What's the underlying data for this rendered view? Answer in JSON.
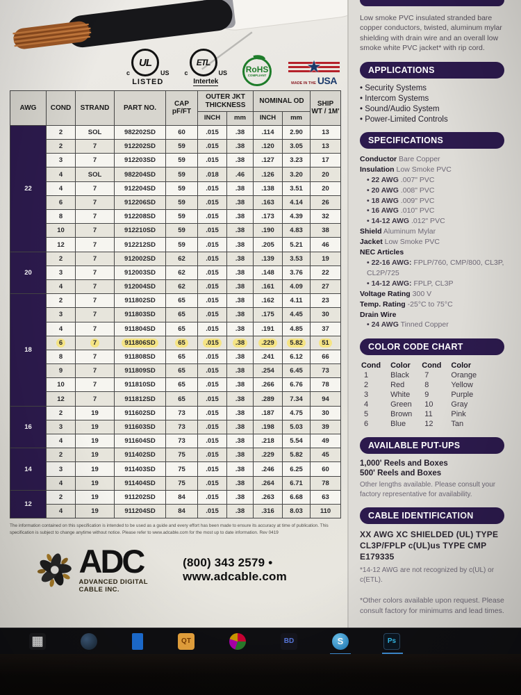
{
  "colors": {
    "purple": "#2c1a4d",
    "highlight": "#f5e484",
    "rohs_green": "#1e7c2a",
    "usa_red": "#b5212a",
    "usa_navy": "#1b3a6b",
    "gold": "#a77b28"
  },
  "badges": {
    "ul": {
      "prefix": "c",
      "text": "UL",
      "suffix": "US",
      "label": "LISTED"
    },
    "etl": {
      "prefix": "c",
      "text": "ETL",
      "suffix": "US",
      "label": "Intertek"
    },
    "rohs": {
      "text": "RoHS",
      "sub": "COMPLIANT"
    },
    "usa": {
      "pre": "MADE IN THE",
      "text": "USA",
      "star": "★"
    }
  },
  "table": {
    "col_headers": {
      "awg": "AWG",
      "cond": "COND",
      "strand": "STRAND",
      "part_no": "PART NO.",
      "cap": "CAP pF/FT",
      "outer_jkt": "OUTER JKT THICKNESS",
      "nominal_od": "NOMINAL OD",
      "ship_wt": "SHIP WT / 1M'",
      "inch": "INCH",
      "mm": "mm"
    },
    "highlight_part_no": "911806SD",
    "groups": [
      {
        "awg": "22",
        "rows": [
          [
            "2",
            "SOL",
            "982202SD",
            "60",
            ".015",
            ".38",
            ".114",
            "2.90",
            "13"
          ],
          [
            "2",
            "7",
            "912202SD",
            "59",
            ".015",
            ".38",
            ".120",
            "3.05",
            "13"
          ],
          [
            "3",
            "7",
            "912203SD",
            "59",
            ".015",
            ".38",
            ".127",
            "3.23",
            "17"
          ],
          [
            "4",
            "SOL",
            "982204SD",
            "59",
            ".018",
            ".46",
            ".126",
            "3.20",
            "20"
          ],
          [
            "4",
            "7",
            "912204SD",
            "59",
            ".015",
            ".38",
            ".138",
            "3.51",
            "20"
          ],
          [
            "6",
            "7",
            "912206SD",
            "59",
            ".015",
            ".38",
            ".163",
            "4.14",
            "26"
          ],
          [
            "8",
            "7",
            "912208SD",
            "59",
            ".015",
            ".38",
            ".173",
            "4.39",
            "32"
          ],
          [
            "10",
            "7",
            "912210SD",
            "59",
            ".015",
            ".38",
            ".190",
            "4.83",
            "38"
          ],
          [
            "12",
            "7",
            "912212SD",
            "59",
            ".015",
            ".38",
            ".205",
            "5.21",
            "46"
          ]
        ]
      },
      {
        "awg": "20",
        "rows": [
          [
            "2",
            "7",
            "912002SD",
            "62",
            ".015",
            ".38",
            ".139",
            "3.53",
            "19"
          ],
          [
            "3",
            "7",
            "912003SD",
            "62",
            ".015",
            ".38",
            ".148",
            "3.76",
            "22"
          ],
          [
            "4",
            "7",
            "912004SD",
            "62",
            ".015",
            ".38",
            ".161",
            "4.09",
            "27"
          ]
        ]
      },
      {
        "awg": "18",
        "rows": [
          [
            "2",
            "7",
            "911802SD",
            "65",
            ".015",
            ".38",
            ".162",
            "4.11",
            "23"
          ],
          [
            "3",
            "7",
            "911803SD",
            "65",
            ".015",
            ".38",
            ".175",
            "4.45",
            "30"
          ],
          [
            "4",
            "7",
            "911804SD",
            "65",
            ".015",
            ".38",
            ".191",
            "4.85",
            "37"
          ],
          [
            "6",
            "7",
            "911806SD",
            "65",
            ".015",
            ".38",
            ".229",
            "5.82",
            "51"
          ],
          [
            "8",
            "7",
            "911808SD",
            "65",
            ".015",
            ".38",
            ".241",
            "6.12",
            "66"
          ],
          [
            "9",
            "7",
            "911809SD",
            "65",
            ".015",
            ".38",
            ".254",
            "6.45",
            "73"
          ],
          [
            "10",
            "7",
            "911810SD",
            "65",
            ".015",
            ".38",
            ".266",
            "6.76",
            "78"
          ],
          [
            "12",
            "7",
            "911812SD",
            "65",
            ".015",
            ".38",
            ".289",
            "7.34",
            "94"
          ]
        ]
      },
      {
        "awg": "16",
        "rows": [
          [
            "2",
            "19",
            "911602SD",
            "73",
            ".015",
            ".38",
            ".187",
            "4.75",
            "30"
          ],
          [
            "3",
            "19",
            "911603SD",
            "73",
            ".015",
            ".38",
            ".198",
            "5.03",
            "39"
          ],
          [
            "4",
            "19",
            "911604SD",
            "73",
            ".015",
            ".38",
            ".218",
            "5.54",
            "49"
          ]
        ]
      },
      {
        "awg": "14",
        "rows": [
          [
            "2",
            "19",
            "911402SD",
            "75",
            ".015",
            ".38",
            ".229",
            "5.82",
            "45"
          ],
          [
            "3",
            "19",
            "911403SD",
            "75",
            ".015",
            ".38",
            ".246",
            "6.25",
            "60"
          ],
          [
            "4",
            "19",
            "911404SD",
            "75",
            ".015",
            ".38",
            ".264",
            "6.71",
            "78"
          ]
        ]
      },
      {
        "awg": "12",
        "rows": [
          [
            "2",
            "19",
            "911202SD",
            "84",
            ".015",
            ".38",
            ".263",
            "6.68",
            "63"
          ],
          [
            "4",
            "19",
            "911204SD",
            "84",
            ".015",
            ".38",
            ".316",
            "8.03",
            "110"
          ]
        ]
      }
    ]
  },
  "panel": {
    "description": "Low smoke PVC insulated stranded bare copper conductors, twisted, aluminum mylar shielding with drain wire and an overall low smoke white PVC jacket* with rip cord.",
    "applications": {
      "title": "APPLICATIONS",
      "items": [
        "Security Systems",
        "Intercom Systems",
        "Sound/Audio System",
        "Power-Limited Controls"
      ]
    },
    "specifications": {
      "title": "SPECIFICATIONS",
      "lines": [
        {
          "label": "Conductor",
          "value": "Bare Copper"
        },
        {
          "label": "Insulation",
          "value": "Low Smoke PVC"
        },
        {
          "b": "22 AWG",
          "v": ".007\" PVC"
        },
        {
          "b": "20 AWG",
          "v": ".008\" PVC"
        },
        {
          "b": "18 AWG",
          "v": ".009\" PVC"
        },
        {
          "b": "16 AWG",
          "v": ".010\" PVC"
        },
        {
          "b": "14-12 AWG",
          "v": ".012\" PVC"
        },
        {
          "label": "Shield",
          "value": "Aluminum Mylar"
        },
        {
          "label": "Jacket",
          "value": "Low Smoke PVC"
        },
        {
          "label": "NEC Articles",
          "value": ""
        },
        {
          "b": "22-16 AWG:",
          "v": "FPLP/760, CMP/800, CL3P, CL2P/725"
        },
        {
          "b": "14-12 AWG:",
          "v": "FPLP, CL3P"
        },
        {
          "label": "Voltage Rating",
          "value": "300 V"
        },
        {
          "label": "Temp. Rating",
          "value": "-25°C to 75°C"
        },
        {
          "label": "Drain Wire",
          "value": ""
        },
        {
          "b": "24 AWG",
          "v": "Tinned Copper"
        }
      ]
    },
    "color_code": {
      "title": "COLOR CODE CHART",
      "headers": [
        "Cond",
        "Color",
        "Cond",
        "Color"
      ],
      "rows": [
        [
          "1",
          "Black",
          "7",
          "Orange"
        ],
        [
          "2",
          "Red",
          "8",
          "Yellow"
        ],
        [
          "3",
          "White",
          "9",
          "Purple"
        ],
        [
          "4",
          "Green",
          "10",
          "Gray"
        ],
        [
          "5",
          "Brown",
          "11",
          "Pink"
        ],
        [
          "6",
          "Blue",
          "12",
          "Tan"
        ]
      ]
    },
    "put_ups": {
      "title": "AVAILABLE PUT-UPS",
      "lines": [
        "1,000' Reels and Boxes",
        "500' Reels and Boxes"
      ],
      "note": "Other lengths available. Please consult your factory representative for availability."
    },
    "cable_id": {
      "title": "CABLE IDENTIFICATION",
      "text": "XX AWG XC SHIELDED (UL) TYPE CL3P/FPLP c(UL)us TYPE CMP E179335",
      "footnote": "*14-12 AWG are not recognized by c(UL) or c(ETL)."
    },
    "other_note": "*Other colors available upon request. Please consult factory for minimums and lead times."
  },
  "footer": {
    "fine_print": "The information contained on this specification is intended to be used as a guide and every effort has been made to ensure its accuracy at time of publication. This specification is subject to change anytime without notice. Please refer to www.adcable.com for the most up to date information.  Rev 0419",
    "logo": {
      "name": "ADC",
      "subtitle": "ADVANCED DIGITAL CABLE INC."
    },
    "contact": "(800) 343 2579 • www.adcable.com"
  },
  "taskbar": {
    "icons": [
      {
        "name": "start-grid-icon",
        "cls": "tb-start",
        "glyph": "▦",
        "active": false
      },
      {
        "name": "browser-icon",
        "cls": "tb-browser",
        "glyph": "",
        "active": false
      },
      {
        "name": "folder-icon",
        "cls": "tb-folder",
        "glyph": "",
        "active": false
      },
      {
        "name": "quicktime-icon",
        "cls": "tb-qt",
        "glyph": "QT",
        "active": false
      },
      {
        "name": "media-player-icon",
        "cls": "tb-media",
        "glyph": "",
        "active": false
      },
      {
        "name": "bd-app-icon",
        "cls": "tb-bd",
        "glyph": "BD",
        "active": false
      },
      {
        "name": "skype-icon",
        "cls": "tb-skype",
        "glyph": "S",
        "active": true
      },
      {
        "name": "photoshop-icon",
        "cls": "tb-ps",
        "glyph": "Ps",
        "active": true
      }
    ]
  }
}
